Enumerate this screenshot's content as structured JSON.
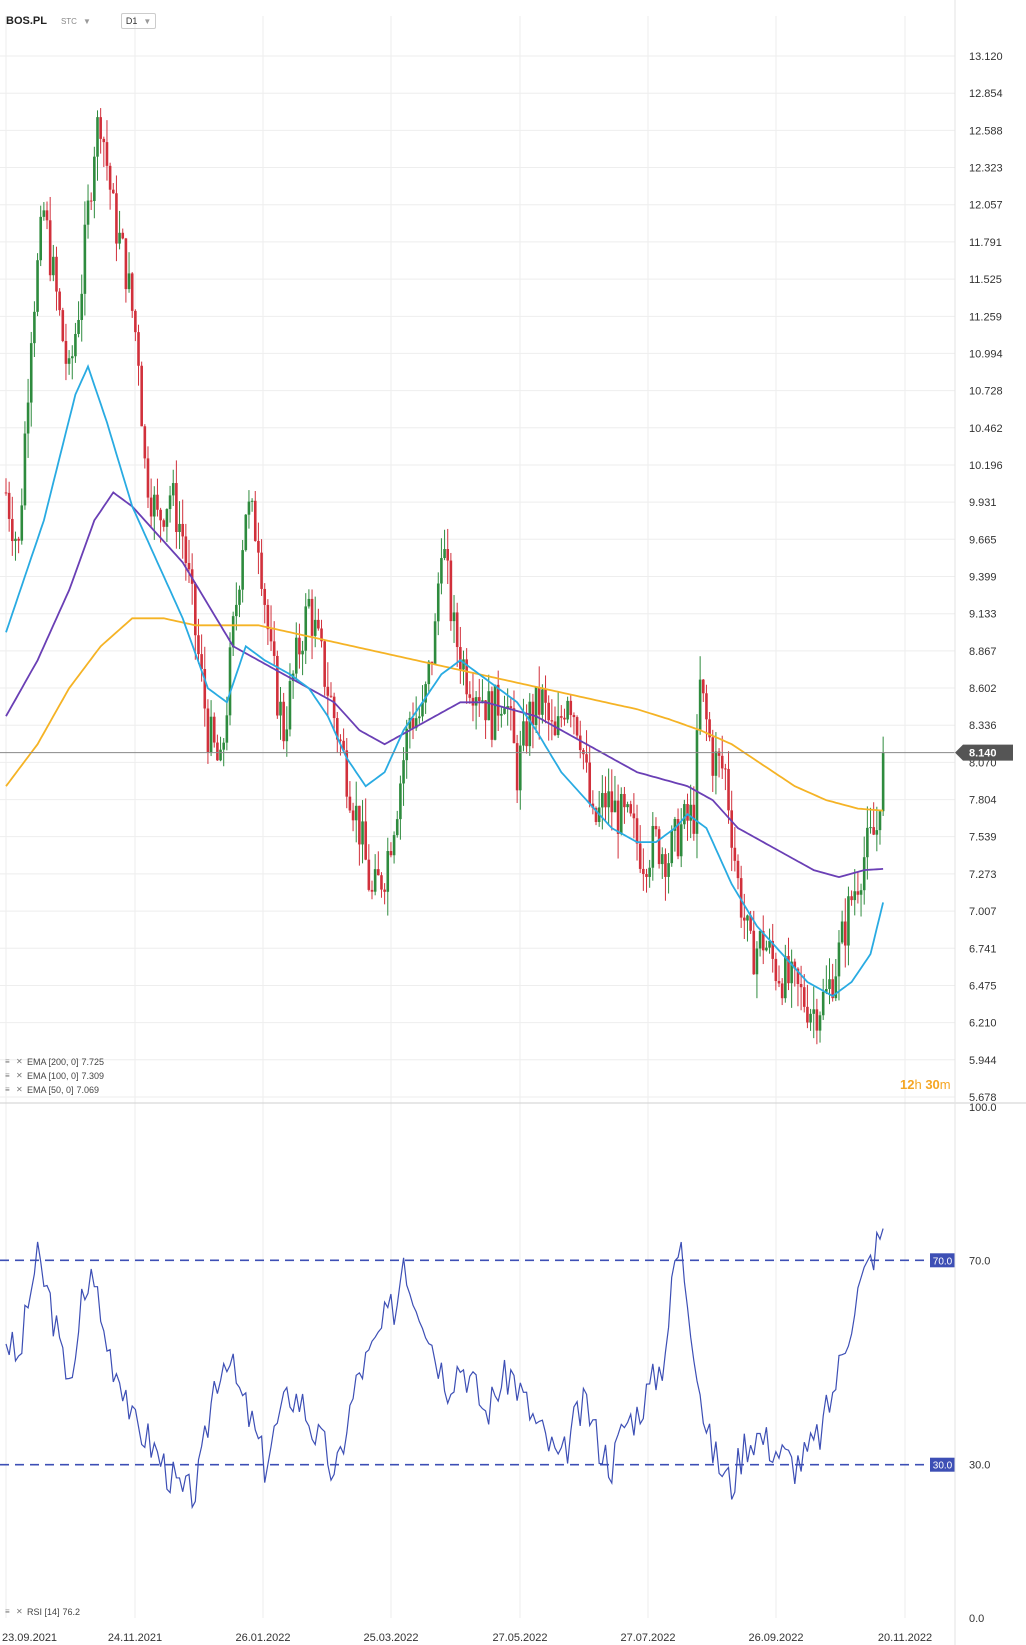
{
  "header": {
    "symbol": "BOS.PL",
    "market": "STC",
    "timeframe": "D1"
  },
  "indicators": {
    "ema200_label": "EMA [200, 0]",
    "ema200_value": "7.725",
    "ema100_label": "EMA [100, 0]",
    "ema100_value": "7.309",
    "ema50_label": "EMA [50, 0]",
    "ema50_value": "7.069",
    "rsi_label": "RSI [14]",
    "rsi_value": "76.2"
  },
  "countdown": {
    "hours": "12",
    "h_unit": "h",
    "minutes": "30",
    "m_unit": "m"
  },
  "colors": {
    "bull": "#2e8b3e",
    "bear": "#d1303b",
    "ema50": "#29abe2",
    "ema100": "#6a3fb5",
    "ema200": "#f5b325",
    "rsi": "#3d4fb5",
    "price_badge": "#555555",
    "grid": "#eeeeee"
  },
  "chart_data": [
    {
      "type": "candlestick",
      "current_price": 8.14,
      "current_price_label": "8.140",
      "y_ticks": [
        "13.120",
        "12.854",
        "12.588",
        "12.323",
        "12.057",
        "11.791",
        "11.525",
        "11.259",
        "10.994",
        "10.728",
        "10.462",
        "10.196",
        "9.931",
        "9.665",
        "9.399",
        "9.133",
        "8.867",
        "8.602",
        "8.336",
        "8.070",
        "7.804",
        "7.539",
        "7.273",
        "7.007",
        "6.741",
        "6.475",
        "6.210",
        "5.944",
        "5.678"
      ],
      "ylim": [
        5.678,
        13.12
      ],
      "x_tick_labels": [
        "23.09.2021",
        "24.11.2021",
        "26.01.2022",
        "25.03.2022",
        "27.05.2022",
        "27.07.2022",
        "26.09.2022",
        "20.11.2022"
      ],
      "close_path": [
        [
          0,
          10.0
        ],
        [
          4,
          9.6
        ],
        [
          8,
          11.2
        ],
        [
          12,
          12.0
        ],
        [
          16,
          11.4
        ],
        [
          20,
          10.8
        ],
        [
          24,
          11.5
        ],
        [
          28,
          12.5
        ],
        [
          30,
          12.7
        ],
        [
          34,
          12.0
        ],
        [
          38,
          11.6
        ],
        [
          42,
          11.0
        ],
        [
          44,
          10.2
        ],
        [
          48,
          9.8
        ],
        [
          52,
          10.0
        ],
        [
          56,
          9.7
        ],
        [
          60,
          9.0
        ],
        [
          64,
          8.3
        ],
        [
          68,
          8.0
        ],
        [
          72,
          9.0
        ],
        [
          76,
          9.9
        ],
        [
          80,
          9.7
        ],
        [
          84,
          8.8
        ],
        [
          88,
          8.3
        ],
        [
          92,
          8.8
        ],
        [
          96,
          9.2
        ],
        [
          100,
          8.8
        ],
        [
          104,
          8.4
        ],
        [
          108,
          8.0
        ],
        [
          112,
          7.6
        ],
        [
          116,
          7.1
        ],
        [
          120,
          7.3
        ],
        [
          124,
          7.8
        ],
        [
          128,
          8.4
        ],
        [
          132,
          8.4
        ],
        [
          136,
          9.0
        ],
        [
          138,
          9.7
        ],
        [
          142,
          9.0
        ],
        [
          146,
          8.7
        ],
        [
          150,
          8.6
        ],
        [
          154,
          8.4
        ],
        [
          158,
          8.6
        ],
        [
          162,
          8.0
        ],
        [
          166,
          8.4
        ],
        [
          170,
          8.5
        ],
        [
          174,
          8.2
        ],
        [
          178,
          8.6
        ],
        [
          182,
          8.3
        ],
        [
          186,
          7.6
        ],
        [
          190,
          7.8
        ],
        [
          194,
          7.7
        ],
        [
          198,
          7.6
        ],
        [
          202,
          7.4
        ],
        [
          206,
          7.5
        ],
        [
          210,
          7.4
        ],
        [
          214,
          7.6
        ],
        [
          218,
          7.7
        ],
        [
          220,
          8.6
        ],
        [
          224,
          8.1
        ],
        [
          228,
          8.0
        ],
        [
          232,
          7.2
        ],
        [
          236,
          6.7
        ],
        [
          240,
          6.8
        ],
        [
          244,
          6.6
        ],
        [
          248,
          6.5
        ],
        [
          252,
          6.4
        ],
        [
          256,
          6.3
        ],
        [
          260,
          6.4
        ],
        [
          264,
          6.7
        ],
        [
          268,
          7.1
        ],
        [
          272,
          7.4
        ],
        [
          276,
          7.6
        ],
        [
          278,
          8.14
        ]
      ],
      "ema50": [
        [
          0,
          9.0
        ],
        [
          12,
          9.8
        ],
        [
          22,
          10.7
        ],
        [
          26,
          10.9
        ],
        [
          32,
          10.5
        ],
        [
          40,
          9.9
        ],
        [
          48,
          9.5
        ],
        [
          56,
          9.1
        ],
        [
          64,
          8.6
        ],
        [
          70,
          8.5
        ],
        [
          76,
          8.9
        ],
        [
          82,
          8.8
        ],
        [
          90,
          8.7
        ],
        [
          96,
          8.6
        ],
        [
          102,
          8.4
        ],
        [
          108,
          8.1
        ],
        [
          114,
          7.9
        ],
        [
          120,
          8.0
        ],
        [
          126,
          8.3
        ],
        [
          132,
          8.5
        ],
        [
          138,
          8.7
        ],
        [
          144,
          8.8
        ],
        [
          150,
          8.7
        ],
        [
          156,
          8.6
        ],
        [
          162,
          8.5
        ],
        [
          168,
          8.3
        ],
        [
          176,
          8.0
        ],
        [
          184,
          7.8
        ],
        [
          192,
          7.6
        ],
        [
          200,
          7.5
        ],
        [
          206,
          7.5
        ],
        [
          212,
          7.6
        ],
        [
          216,
          7.7
        ],
        [
          222,
          7.6
        ],
        [
          230,
          7.2
        ],
        [
          238,
          6.9
        ],
        [
          246,
          6.7
        ],
        [
          254,
          6.5
        ],
        [
          262,
          6.4
        ],
        [
          268,
          6.5
        ],
        [
          274,
          6.7
        ],
        [
          278,
          7.069
        ]
      ],
      "ema100": [
        [
          0,
          8.4
        ],
        [
          10,
          8.8
        ],
        [
          20,
          9.3
        ],
        [
          28,
          9.8
        ],
        [
          34,
          10.0
        ],
        [
          40,
          9.9
        ],
        [
          48,
          9.7
        ],
        [
          56,
          9.5
        ],
        [
          64,
          9.2
        ],
        [
          72,
          8.9
        ],
        [
          80,
          8.8
        ],
        [
          88,
          8.7
        ],
        [
          96,
          8.6
        ],
        [
          104,
          8.5
        ],
        [
          112,
          8.3
        ],
        [
          120,
          8.2
        ],
        [
          128,
          8.3
        ],
        [
          136,
          8.4
        ],
        [
          144,
          8.5
        ],
        [
          152,
          8.5
        ],
        [
          160,
          8.45
        ],
        [
          168,
          8.4
        ],
        [
          176,
          8.3
        ],
        [
          184,
          8.2
        ],
        [
          192,
          8.1
        ],
        [
          200,
          8.0
        ],
        [
          208,
          7.95
        ],
        [
          216,
          7.9
        ],
        [
          224,
          7.8
        ],
        [
          232,
          7.6
        ],
        [
          240,
          7.5
        ],
        [
          248,
          7.4
        ],
        [
          256,
          7.3
        ],
        [
          264,
          7.25
        ],
        [
          272,
          7.3
        ],
        [
          278,
          7.309
        ]
      ],
      "ema200": [
        [
          0,
          7.9
        ],
        [
          10,
          8.2
        ],
        [
          20,
          8.6
        ],
        [
          30,
          8.9
        ],
        [
          40,
          9.1
        ],
        [
          50,
          9.1
        ],
        [
          60,
          9.05
        ],
        [
          70,
          9.05
        ],
        [
          80,
          9.05
        ],
        [
          90,
          9.0
        ],
        [
          100,
          8.95
        ],
        [
          110,
          8.9
        ],
        [
          120,
          8.85
        ],
        [
          130,
          8.8
        ],
        [
          140,
          8.75
        ],
        [
          150,
          8.7
        ],
        [
          160,
          8.65
        ],
        [
          170,
          8.6
        ],
        [
          180,
          8.55
        ],
        [
          190,
          8.5
        ],
        [
          200,
          8.45
        ],
        [
          210,
          8.38
        ],
        [
          220,
          8.3
        ],
        [
          230,
          8.2
        ],
        [
          240,
          8.05
        ],
        [
          250,
          7.9
        ],
        [
          260,
          7.8
        ],
        [
          270,
          7.74
        ],
        [
          278,
          7.725
        ]
      ]
    },
    {
      "type": "line",
      "title": "RSI [14]",
      "ylim": [
        0,
        100
      ],
      "y_ticks": [
        "100.0",
        "70.0",
        "30.0",
        "0.0"
      ],
      "levels": [
        70,
        30
      ],
      "level_labels": [
        "70.0",
        "30.0"
      ],
      "rsi_path": [
        [
          0,
          55
        ],
        [
          4,
          50
        ],
        [
          8,
          65
        ],
        [
          10,
          70
        ],
        [
          14,
          62
        ],
        [
          18,
          50
        ],
        [
          22,
          48
        ],
        [
          24,
          62
        ],
        [
          28,
          68
        ],
        [
          30,
          58
        ],
        [
          34,
          50
        ],
        [
          38,
          45
        ],
        [
          40,
          38
        ],
        [
          44,
          36
        ],
        [
          48,
          32
        ],
        [
          52,
          28
        ],
        [
          56,
          24
        ],
        [
          60,
          25
        ],
        [
          62,
          30
        ],
        [
          66,
          46
        ],
        [
          70,
          52
        ],
        [
          74,
          44
        ],
        [
          78,
          38
        ],
        [
          82,
          30
        ],
        [
          86,
          38
        ],
        [
          90,
          44
        ],
        [
          94,
          42
        ],
        [
          98,
          36
        ],
        [
          102,
          32
        ],
        [
          104,
          26
        ],
        [
          108,
          38
        ],
        [
          112,
          48
        ],
        [
          116,
          52
        ],
        [
          120,
          58
        ],
        [
          124,
          62
        ],
        [
          126,
          72
        ],
        [
          128,
          65
        ],
        [
          132,
          60
        ],
        [
          136,
          52
        ],
        [
          140,
          46
        ],
        [
          144,
          50
        ],
        [
          148,
          46
        ],
        [
          152,
          40
        ],
        [
          156,
          45
        ],
        [
          160,
          48
        ],
        [
          164,
          43
        ],
        [
          168,
          38
        ],
        [
          172,
          34
        ],
        [
          176,
          30
        ],
        [
          180,
          38
        ],
        [
          184,
          42
        ],
        [
          188,
          34
        ],
        [
          192,
          30
        ],
        [
          196,
          38
        ],
        [
          200,
          40
        ],
        [
          204,
          45
        ],
        [
          208,
          50
        ],
        [
          210,
          58
        ],
        [
          212,
          70
        ],
        [
          214,
          72
        ],
        [
          218,
          54
        ],
        [
          222,
          36
        ],
        [
          226,
          30
        ],
        [
          230,
          26
        ],
        [
          234,
          34
        ],
        [
          238,
          36
        ],
        [
          242,
          34
        ],
        [
          246,
          32
        ],
        [
          250,
          30
        ],
        [
          254,
          32
        ],
        [
          258,
          36
        ],
        [
          262,
          44
        ],
        [
          266,
          54
        ],
        [
          270,
          64
        ],
        [
          274,
          70
        ],
        [
          278,
          76.2
        ]
      ]
    }
  ]
}
